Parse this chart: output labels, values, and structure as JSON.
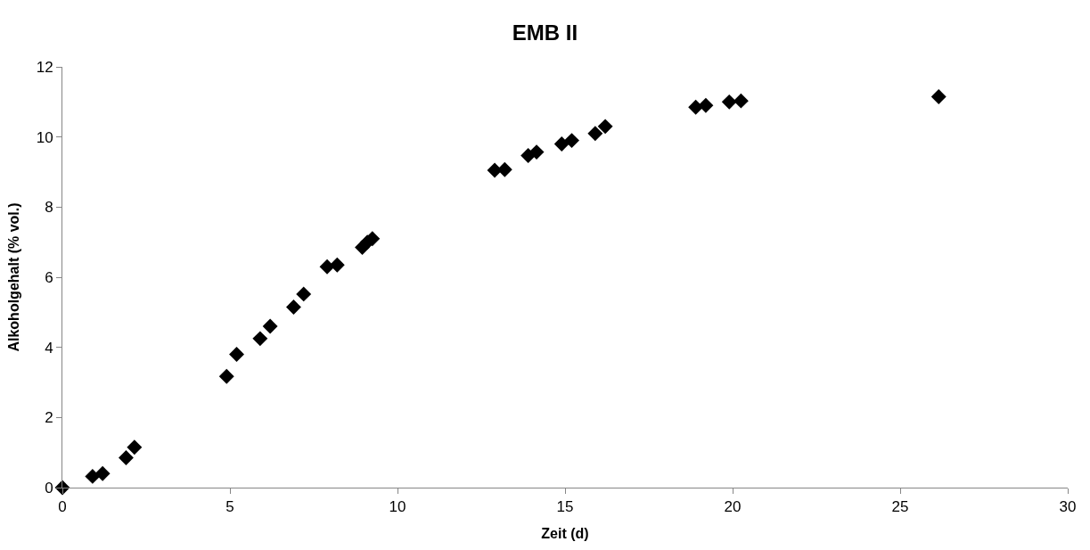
{
  "chart_data": {
    "type": "scatter",
    "title": "EMB II",
    "xlabel": "Zeit (d)",
    "ylabel": "Alkoholgehalt (% vol.)",
    "x": [
      0,
      0.9,
      1.2,
      1.9,
      2.15,
      4.9,
      5.2,
      5.9,
      6.2,
      6.9,
      7.2,
      7.9,
      8.2,
      8.95,
      9.1,
      9.25,
      12.9,
      13.2,
      13.9,
      14.15,
      14.9,
      15.2,
      15.9,
      16.2,
      18.9,
      19.2,
      19.9,
      20.25,
      26.15
    ],
    "series": [
      {
        "color": "#000000",
        "values": [
          0,
          0.32,
          0.4,
          0.85,
          1.15,
          3.17,
          3.8,
          4.25,
          4.6,
          5.15,
          5.52,
          6.3,
          6.35,
          6.85,
          7.0,
          7.1,
          9.05,
          9.07,
          9.47,
          9.57,
          9.8,
          9.9,
          10.1,
          10.3,
          10.85,
          10.9,
          11.0,
          11.03,
          11.15
        ]
      }
    ],
    "xlim": [
      0,
      30
    ],
    "xticks": [
      0,
      5,
      10,
      15,
      20,
      25,
      30
    ],
    "ylim": [
      0,
      12
    ],
    "yticks": [
      0,
      2,
      4,
      6,
      8,
      10,
      12
    ],
    "marker": "diamond",
    "grid": false
  }
}
